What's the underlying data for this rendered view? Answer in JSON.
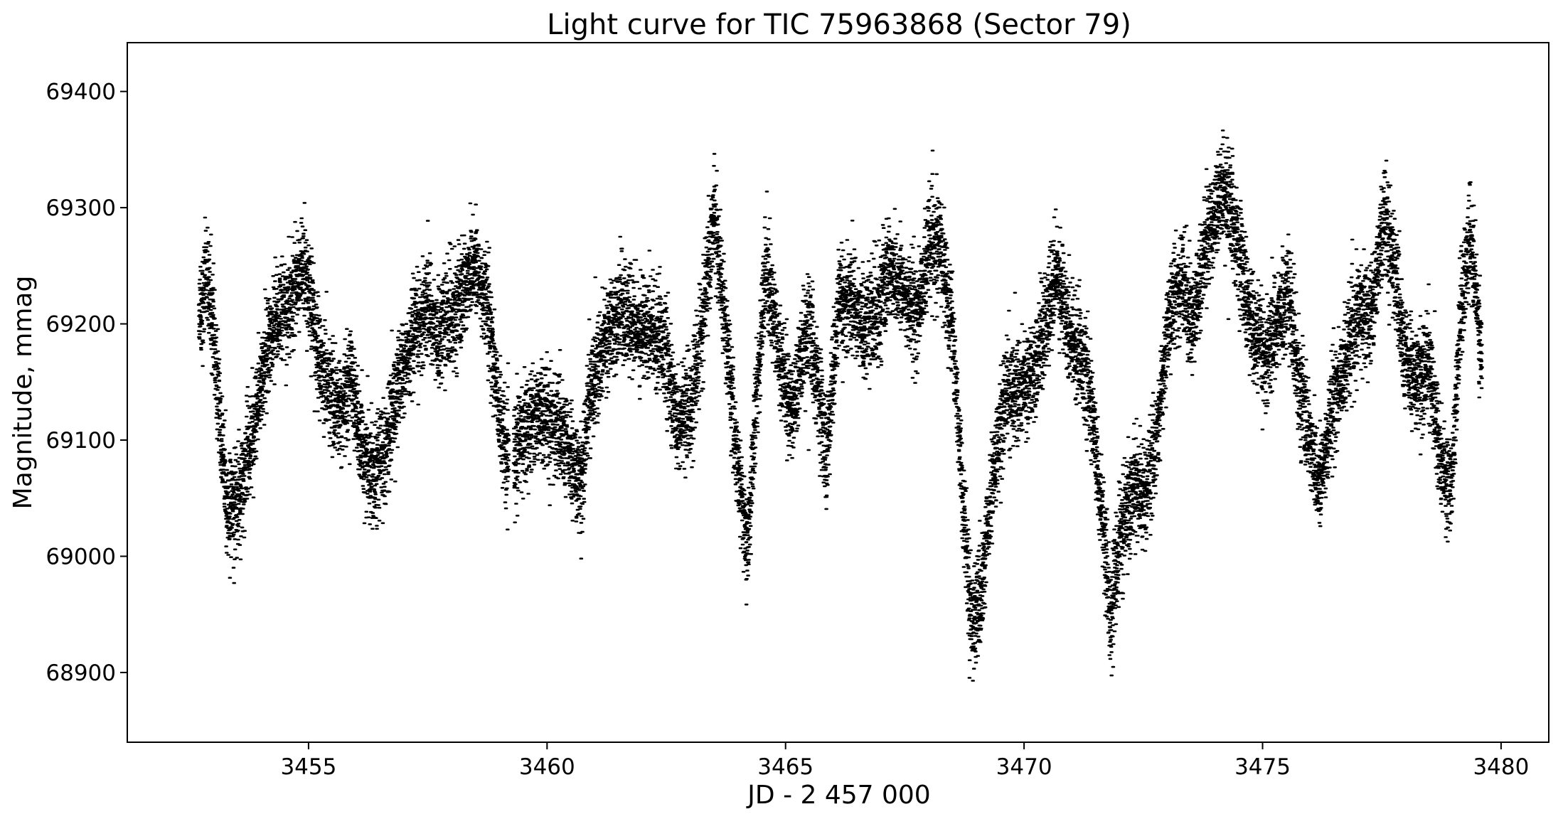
{
  "chart_data": {
    "type": "scatter",
    "title": "Light curve for TIC 75963868 (Sector 79)",
    "xlabel": "JD - 2 457 000",
    "ylabel": "Magnitude, mmag",
    "xlim": [
      3451.2,
      3481.0
    ],
    "ylim": [
      68840,
      69442
    ],
    "x_ticks": [
      3455,
      3460,
      3465,
      3470,
      3475,
      3480
    ],
    "x_tick_labels": [
      "3455",
      "3460",
      "3465",
      "3470",
      "3475",
      "3480"
    ],
    "y_ticks": [
      68900,
      69000,
      69100,
      69200,
      69300,
      69400
    ],
    "y_tick_labels": [
      "68900",
      "69000",
      "69100",
      "69200",
      "69300",
      "69400"
    ],
    "grid": false,
    "marker_color": "#000000",
    "series": [
      {
        "x_range": [
          3452.7,
          3479.6
        ],
        "gap": [
          3459.2,
          3459.3
        ],
        "trend_points": [
          [
            3452.7,
            69190
          ],
          [
            3452.85,
            69255
          ],
          [
            3453.0,
            69200
          ],
          [
            3453.15,
            69110
          ],
          [
            3453.3,
            69040
          ],
          [
            3453.5,
            69045
          ],
          [
            3453.7,
            69080
          ],
          [
            3454.0,
            69150
          ],
          [
            3454.3,
            69205
          ],
          [
            3454.6,
            69215
          ],
          [
            3454.85,
            69250
          ],
          [
            3455.0,
            69230
          ],
          [
            3455.2,
            69175
          ],
          [
            3455.45,
            69140
          ],
          [
            3455.7,
            69120
          ],
          [
            3455.9,
            69160
          ],
          [
            3456.1,
            69090
          ],
          [
            3456.35,
            69075
          ],
          [
            3456.6,
            69090
          ],
          [
            3456.9,
            69150
          ],
          [
            3457.2,
            69185
          ],
          [
            3457.5,
            69220
          ],
          [
            3457.7,
            69185
          ],
          [
            3457.9,
            69205
          ],
          [
            3458.15,
            69215
          ],
          [
            3458.45,
            69255
          ],
          [
            3458.75,
            69215
          ],
          [
            3459.0,
            69125
          ],
          [
            3459.15,
            69080
          ],
          [
            3459.4,
            69095
          ],
          [
            3459.65,
            69120
          ],
          [
            3459.9,
            69125
          ],
          [
            3460.15,
            69115
          ],
          [
            3460.45,
            69090
          ],
          [
            3460.7,
            69060
          ],
          [
            3460.9,
            69140
          ],
          [
            3461.2,
            69185
          ],
          [
            3461.55,
            69215
          ],
          [
            3461.85,
            69195
          ],
          [
            3462.15,
            69200
          ],
          [
            3462.45,
            69185
          ],
          [
            3462.7,
            69115
          ],
          [
            3462.95,
            69120
          ],
          [
            3463.2,
            69175
          ],
          [
            3463.5,
            69295
          ],
          [
            3463.7,
            69215
          ],
          [
            3463.9,
            69120
          ],
          [
            3464.1,
            69040
          ],
          [
            3464.2,
            69005
          ],
          [
            3464.4,
            69145
          ],
          [
            3464.6,
            69255
          ],
          [
            3464.85,
            69175
          ],
          [
            3465.1,
            69125
          ],
          [
            3465.3,
            69160
          ],
          [
            3465.5,
            69200
          ],
          [
            3465.7,
            69140
          ],
          [
            3465.85,
            69085
          ],
          [
            3466.1,
            69210
          ],
          [
            3466.35,
            69225
          ],
          [
            3466.65,
            69195
          ],
          [
            3466.95,
            69215
          ],
          [
            3467.2,
            69250
          ],
          [
            3467.5,
            69225
          ],
          [
            3467.75,
            69205
          ],
          [
            3468.0,
            69265
          ],
          [
            3468.25,
            69265
          ],
          [
            3468.5,
            69200
          ],
          [
            3468.7,
            69060
          ],
          [
            3468.9,
            68945
          ],
          [
            3469.1,
            68960
          ],
          [
            3469.3,
            69050
          ],
          [
            3469.6,
            69140
          ],
          [
            3469.9,
            69145
          ],
          [
            3470.15,
            69155
          ],
          [
            3470.45,
            69200
          ],
          [
            3470.7,
            69245
          ],
          [
            3470.95,
            69195
          ],
          [
            3471.2,
            69175
          ],
          [
            3471.4,
            69130
          ],
          [
            3471.6,
            69050
          ],
          [
            3471.8,
            68950
          ],
          [
            3472.05,
            69020
          ],
          [
            3472.3,
            69060
          ],
          [
            3472.55,
            69050
          ],
          [
            3472.8,
            69110
          ],
          [
            3473.05,
            69210
          ],
          [
            3473.3,
            69240
          ],
          [
            3473.55,
            69200
          ],
          [
            3473.8,
            69265
          ],
          [
            3474.05,
            69305
          ],
          [
            3474.3,
            69310
          ],
          [
            3474.55,
            69250
          ],
          [
            3474.8,
            69195
          ],
          [
            3475.05,
            69170
          ],
          [
            3475.3,
            69200
          ],
          [
            3475.55,
            69225
          ],
          [
            3475.8,
            69140
          ],
          [
            3476.0,
            69100
          ],
          [
            3476.2,
            69060
          ],
          [
            3476.45,
            69125
          ],
          [
            3476.75,
            69170
          ],
          [
            3477.0,
            69205
          ],
          [
            3477.3,
            69215
          ],
          [
            3477.55,
            69295
          ],
          [
            3477.75,
            69255
          ],
          [
            3477.95,
            69175
          ],
          [
            3478.2,
            69150
          ],
          [
            3478.5,
            69165
          ],
          [
            3478.75,
            69080
          ],
          [
            3478.95,
            69055
          ],
          [
            3479.15,
            69210
          ],
          [
            3479.35,
            69275
          ],
          [
            3479.6,
            69175
          ]
        ],
        "scatter_amplitude": 40,
        "n_points": 16000
      }
    ]
  }
}
